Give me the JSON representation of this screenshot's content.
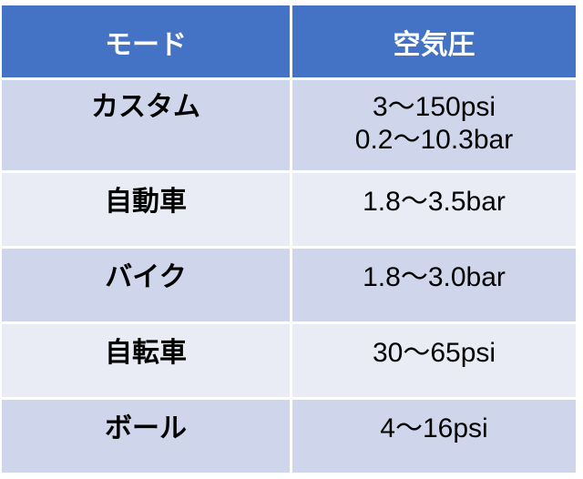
{
  "colors": {
    "header": "#4472C4",
    "row_dark": "#CFD5EA",
    "row_light": "#E9EBF5"
  },
  "headers": [
    "モード",
    "空気圧"
  ],
  "rows": [
    {
      "mode": "カスタム",
      "pressure": [
        "3〜150psi",
        "0.2〜10.3bar"
      ]
    },
    {
      "mode": "自動車",
      "pressure": [
        "1.8〜3.5bar"
      ]
    },
    {
      "mode": "バイク",
      "pressure": [
        "1.8〜3.0bar"
      ]
    },
    {
      "mode": "自転車",
      "pressure": [
        "30〜65psi"
      ]
    },
    {
      "mode": "ボール",
      "pressure": [
        "4〜16psi"
      ]
    }
  ]
}
